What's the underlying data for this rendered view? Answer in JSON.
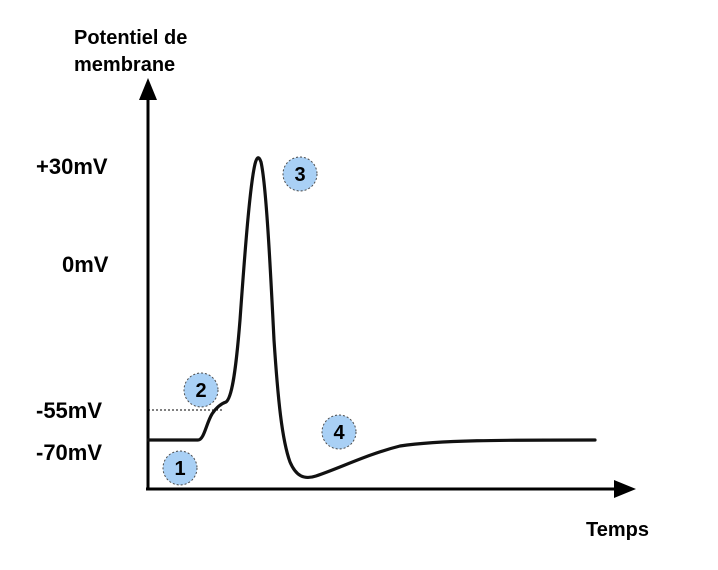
{
  "y_axis": {
    "title_line1": "Potentiel de",
    "title_line2": "membrane",
    "ticks": [
      "+30mV",
      "0mV",
      "-55mV",
      "-70mV"
    ]
  },
  "x_axis": {
    "title": "Temps"
  },
  "markers": [
    "1",
    "2",
    "3",
    "4"
  ],
  "colors": {
    "curve": "#111111",
    "resting_segment": "#1f3a1f",
    "marker_fill": "#a9d0f5",
    "marker_border": "#4a4a4a",
    "axis": "#000000"
  }
}
